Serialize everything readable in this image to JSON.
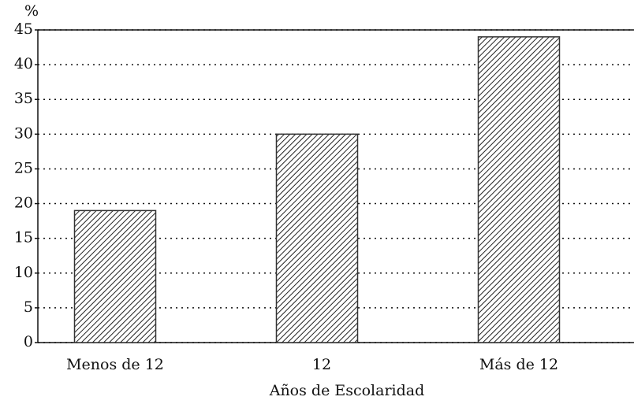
{
  "chart_data": {
    "type": "bar",
    "y_label": "%",
    "x_label": "Años de Escolaridad",
    "categories": [
      "Menos de 12",
      "12",
      "Más de 12"
    ],
    "values": [
      19,
      30,
      44
    ],
    "color": "#333333",
    "ylim": [
      0,
      45
    ],
    "yticks": [
      0,
      5,
      10,
      15,
      20,
      25,
      30,
      35,
      40,
      45
    ],
    "grid": true
  }
}
